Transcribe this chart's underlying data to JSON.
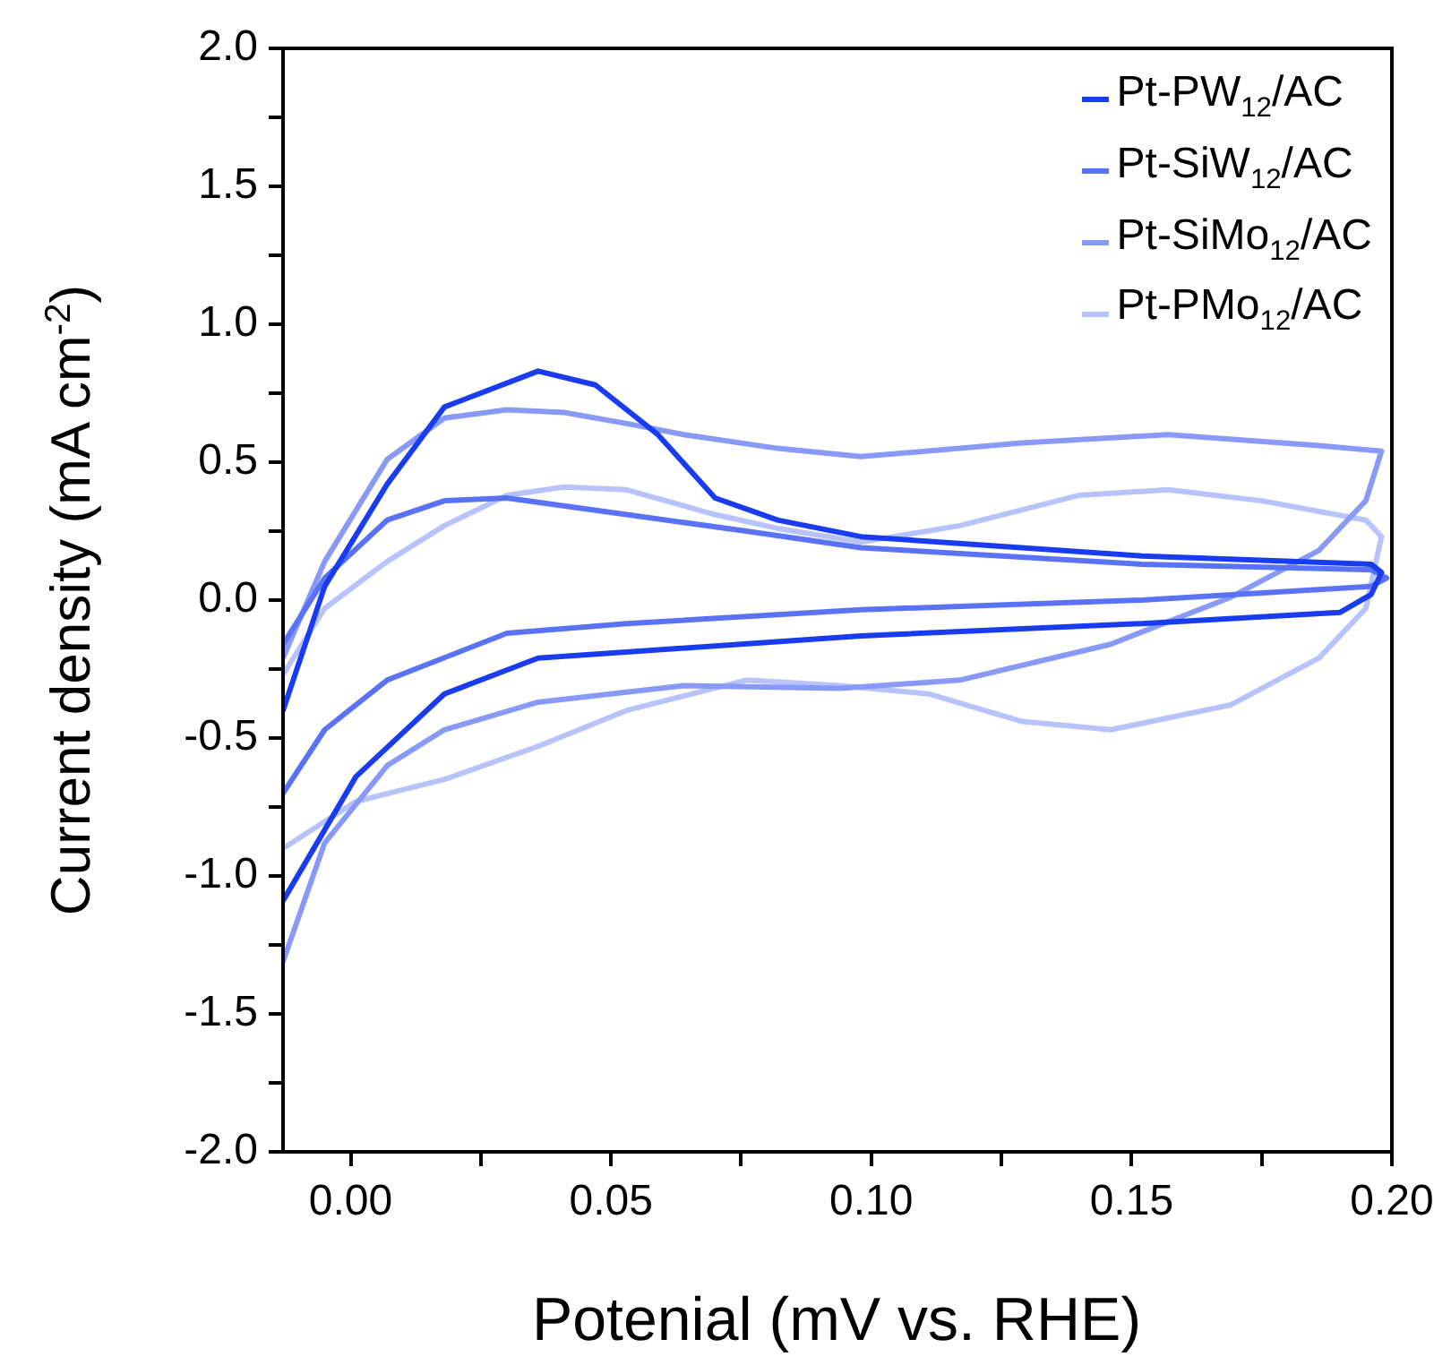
{
  "chart_data": {
    "type": "line",
    "xlabel": "Potenial (mV vs. RHE)",
    "ylabel": "Current density (mA cm$^{-2}$)",
    "xlim": [
      -0.013,
      0.2
    ],
    "ylim": [
      -2.0,
      2.0
    ],
    "xticks": [
      {
        "value": 0,
        "label": "0.00"
      },
      {
        "value": 0.025,
        "label": null
      },
      {
        "value": 0.05,
        "label": "0.05"
      },
      {
        "value": 0.075,
        "label": null
      },
      {
        "value": 0.1,
        "label": "0.10"
      },
      {
        "value": 0.125,
        "label": null
      },
      {
        "value": 0.15,
        "label": "0.15"
      },
      {
        "value": 0.175,
        "label": null
      },
      {
        "value": 0.2,
        "label": "0.20"
      }
    ],
    "yticks": [
      {
        "value": -2,
        "label": "-2.0"
      },
      {
        "value": -1.75,
        "label": null
      },
      {
        "value": -1.5,
        "label": "-1.5"
      },
      {
        "value": -1.25,
        "label": null
      },
      {
        "value": -1,
        "label": "-1.0"
      },
      {
        "value": -0.75,
        "label": null
      },
      {
        "value": -0.5,
        "label": "-0.5"
      },
      {
        "value": -0.25,
        "label": null
      },
      {
        "value": 0,
        "label": "0.0"
      },
      {
        "value": 0.25,
        "label": null
      },
      {
        "value": 0.5,
        "label": "0.5"
      },
      {
        "value": 0.75,
        "label": null
      },
      {
        "value": 1,
        "label": "1.0"
      },
      {
        "value": 1.25,
        "label": null
      },
      {
        "value": 1.5,
        "label": "1.5"
      },
      {
        "value": 1.75,
        "label": null
      },
      {
        "value": 2,
        "label": "2.0"
      }
    ],
    "grid": false,
    "legend": "top right",
    "marker": "none",
    "line_style": "solid",
    "series": [
      {
        "name": "Pt-PW$_{12}$/AC",
        "color": "#1a3cf0",
        "x": [
          -0.013,
          -0.005,
          0.007,
          0.018,
          0.036,
          0.047,
          0.059,
          0.07,
          0.082,
          0.098,
          0.152,
          0.196,
          0.198,
          0.196,
          0.19,
          0.152,
          0.098,
          0.036,
          0.018,
          0.001,
          -0.013
        ],
        "values": [
          -0.4,
          0.05,
          0.42,
          0.7,
          0.83,
          0.78,
          0.6,
          0.37,
          0.29,
          0.23,
          0.16,
          0.13,
          0.1,
          0.02,
          -0.045,
          -0.085,
          -0.13,
          -0.21,
          -0.34,
          -0.64,
          -1.09
        ]
      },
      {
        "name": "Pt-SiW$_{12}$/AC",
        "color": "#5a72f5",
        "x": [
          -0.013,
          -0.005,
          0.007,
          0.018,
          0.03,
          0.053,
          0.076,
          0.098,
          0.152,
          0.196,
          0.199,
          0.196,
          0.152,
          0.098,
          0.053,
          0.03,
          0.007,
          -0.005,
          -0.013
        ],
        "values": [
          -0.16,
          0.08,
          0.29,
          0.36,
          0.37,
          0.31,
          0.25,
          0.19,
          0.13,
          0.11,
          0.08,
          0.05,
          0.0,
          -0.035,
          -0.085,
          -0.12,
          -0.29,
          -0.47,
          -0.7
        ]
      },
      {
        "name": "Pt-SiMo$_{12}$/AC",
        "color": "#8899f7",
        "x": [
          -0.013,
          -0.005,
          0.007,
          0.018,
          0.03,
          0.041,
          0.053,
          0.064,
          0.082,
          0.098,
          0.129,
          0.157,
          0.186,
          0.198,
          0.195,
          0.186,
          0.169,
          0.146,
          0.117,
          0.094,
          0.064,
          0.036,
          0.018,
          0.007,
          -0.005,
          -0.013
        ],
        "values": [
          -0.21,
          0.14,
          0.51,
          0.66,
          0.69,
          0.68,
          0.64,
          0.6,
          0.55,
          0.52,
          0.57,
          0.6,
          0.56,
          0.54,
          0.36,
          0.18,
          0.01,
          -0.16,
          -0.29,
          -0.32,
          -0.31,
          -0.37,
          -0.47,
          -0.6,
          -0.88,
          -1.31
        ]
      },
      {
        "name": "Pt-PMo$_{12}$/AC",
        "color": "#b9c3fb",
        "x": [
          -0.013,
          -0.005,
          0.007,
          0.018,
          0.03,
          0.041,
          0.053,
          0.07,
          0.082,
          0.098,
          0.117,
          0.14,
          0.157,
          0.175,
          0.195,
          0.198,
          0.195,
          0.186,
          0.169,
          0.146,
          0.129,
          0.111,
          0.094,
          0.076,
          0.053,
          0.036,
          0.018,
          0.001,
          -0.013
        ],
        "values": [
          -0.27,
          -0.03,
          0.14,
          0.27,
          0.38,
          0.41,
          0.4,
          0.31,
          0.26,
          0.21,
          0.27,
          0.38,
          0.4,
          0.36,
          0.29,
          0.23,
          -0.03,
          -0.21,
          -0.38,
          -0.47,
          -0.44,
          -0.34,
          -0.31,
          -0.29,
          -0.4,
          -0.53,
          -0.65,
          -0.73,
          -0.9
        ]
      }
    ]
  }
}
